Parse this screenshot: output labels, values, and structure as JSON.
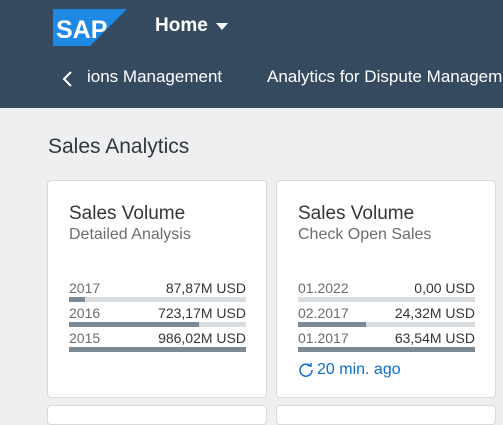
{
  "header": {
    "logo_text": "SAP",
    "home_label": "Home",
    "nav_items": [
      {
        "label": "ions Management"
      },
      {
        "label": "Analytics for Dispute Management"
      }
    ]
  },
  "section": {
    "title": "Sales Analytics"
  },
  "tiles": [
    {
      "title": "Sales Volume",
      "subtitle": "Detailed Analysis",
      "rows": [
        {
          "label": "2017",
          "value": "87,87M USD",
          "fraction": 0.089
        },
        {
          "label": "2016",
          "value": "723,17M USD",
          "fraction": 0.733
        },
        {
          "label": "2015",
          "value": "986,02M USD",
          "fraction": 1.0
        }
      ]
    },
    {
      "title": "Sales Volume",
      "subtitle": "Check Open Sales",
      "rows": [
        {
          "label": "01.2022",
          "value": "0,00 USD",
          "fraction": 0.0
        },
        {
          "label": "02.2017",
          "value": "24,32M USD",
          "fraction": 0.383
        },
        {
          "label": "01.2017",
          "value": "63,54M USD",
          "fraction": 1.0
        }
      ],
      "refresh_label": "20 min. ago"
    }
  ],
  "colors": {
    "shell": "#354a5f",
    "background": "#edeff0",
    "accent": "#0a6ed1",
    "bar_fill": "#7d8a93",
    "bar_track": "#d8dcde"
  },
  "icons": {
    "logo": "sap-logo",
    "back": "chevron-left-icon",
    "home_menu": "caret-down-icon",
    "refresh": "refresh-icon"
  }
}
